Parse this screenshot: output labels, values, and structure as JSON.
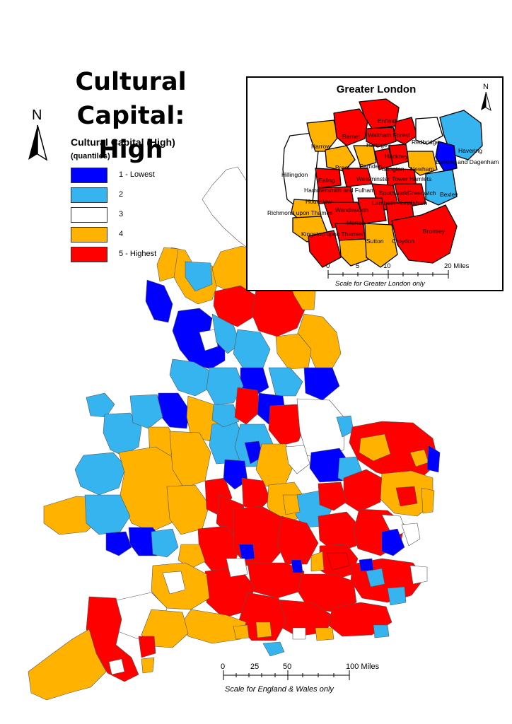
{
  "title_line1": "Cultural Capital:",
  "title_line2": "High",
  "north_label": "N",
  "legend": {
    "title": "Cultural Capital (High)",
    "subtitle": "(quantiles)",
    "items": [
      {
        "label": "1 - Lowest",
        "color": "#0000ff"
      },
      {
        "label": "2",
        "color": "#36b4f0"
      },
      {
        "label": "3",
        "color": "#ffffff"
      },
      {
        "label": "4",
        "color": "#ffb300"
      },
      {
        "label": "5 - Highest",
        "color": "#ff0000"
      }
    ]
  },
  "inset": {
    "title": "Greater London",
    "boroughs": [
      "Enfield",
      "Barnet",
      "Waltham Forest",
      "Haringey",
      "Redbridge",
      "Havering",
      "Harrow",
      "Brent",
      "Camden",
      "Hackney",
      "Islington",
      "Newham",
      "Barking and Dagenham",
      "Hillingdon",
      "Ealing",
      "Westminster",
      "Tower Hamlets",
      "Hammersmith and Fulham",
      "Southwark",
      "Greenwich",
      "Bexley",
      "Hounslow",
      "Lambeth",
      "Lewisham",
      "Richmond upon Thames",
      "Wandsworth",
      "Merton",
      "Kingston upon Thames",
      "Sutton",
      "Croydon",
      "Bromley"
    ],
    "scale_ticks": [
      "0",
      "5",
      "10",
      "20 Miles"
    ],
    "scale_caption": "Scale for Greater London only"
  },
  "main_scale": {
    "ticks": [
      "0",
      "25",
      "50",
      "100 Miles"
    ],
    "caption": "Scale for England & Wales only"
  }
}
